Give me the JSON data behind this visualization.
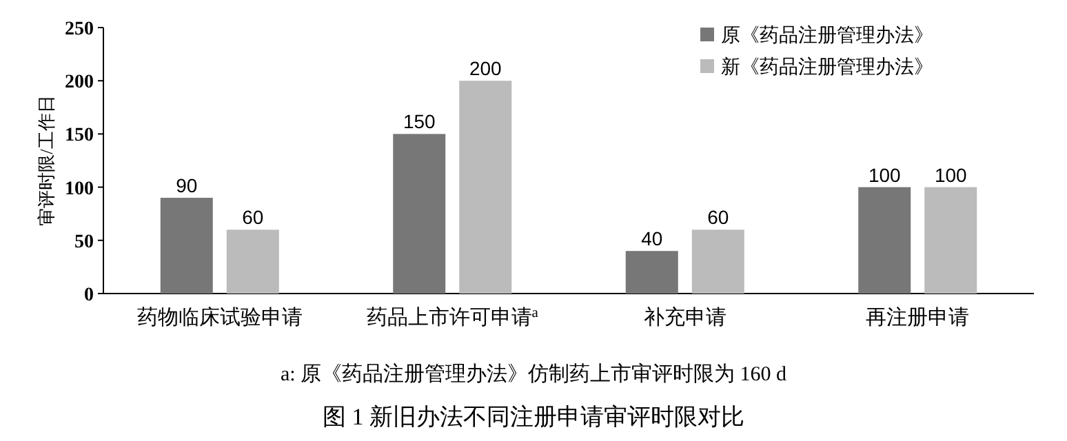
{
  "chart_data": {
    "type": "bar",
    "title": "图 1    新旧办法不同注册申请审评时限对比",
    "ylabel": "审评时限/工作日",
    "categories": [
      "药物临床试验申请",
      "药品上市许可申请$^{a}$",
      "补充申请",
      "再注册申请"
    ],
    "series": [
      {
        "name": "原《药品注册管理办法》",
        "color": "#777777",
        "values": [
          90,
          150,
          40,
          100
        ]
      },
      {
        "name": "新《药品注册管理办法》",
        "color": "#bbbbbb",
        "values": [
          60,
          200,
          60,
          100
        ]
      }
    ],
    "ylim": [
      0,
      250
    ],
    "yticks": [
      0,
      50,
      100,
      150,
      200,
      250
    ],
    "data_labels": true,
    "legend": "top right",
    "grid": false,
    "annotations": [
      "a: 原《药品注册管理办法》仿制药上市审评时限为 160 d"
    ]
  }
}
